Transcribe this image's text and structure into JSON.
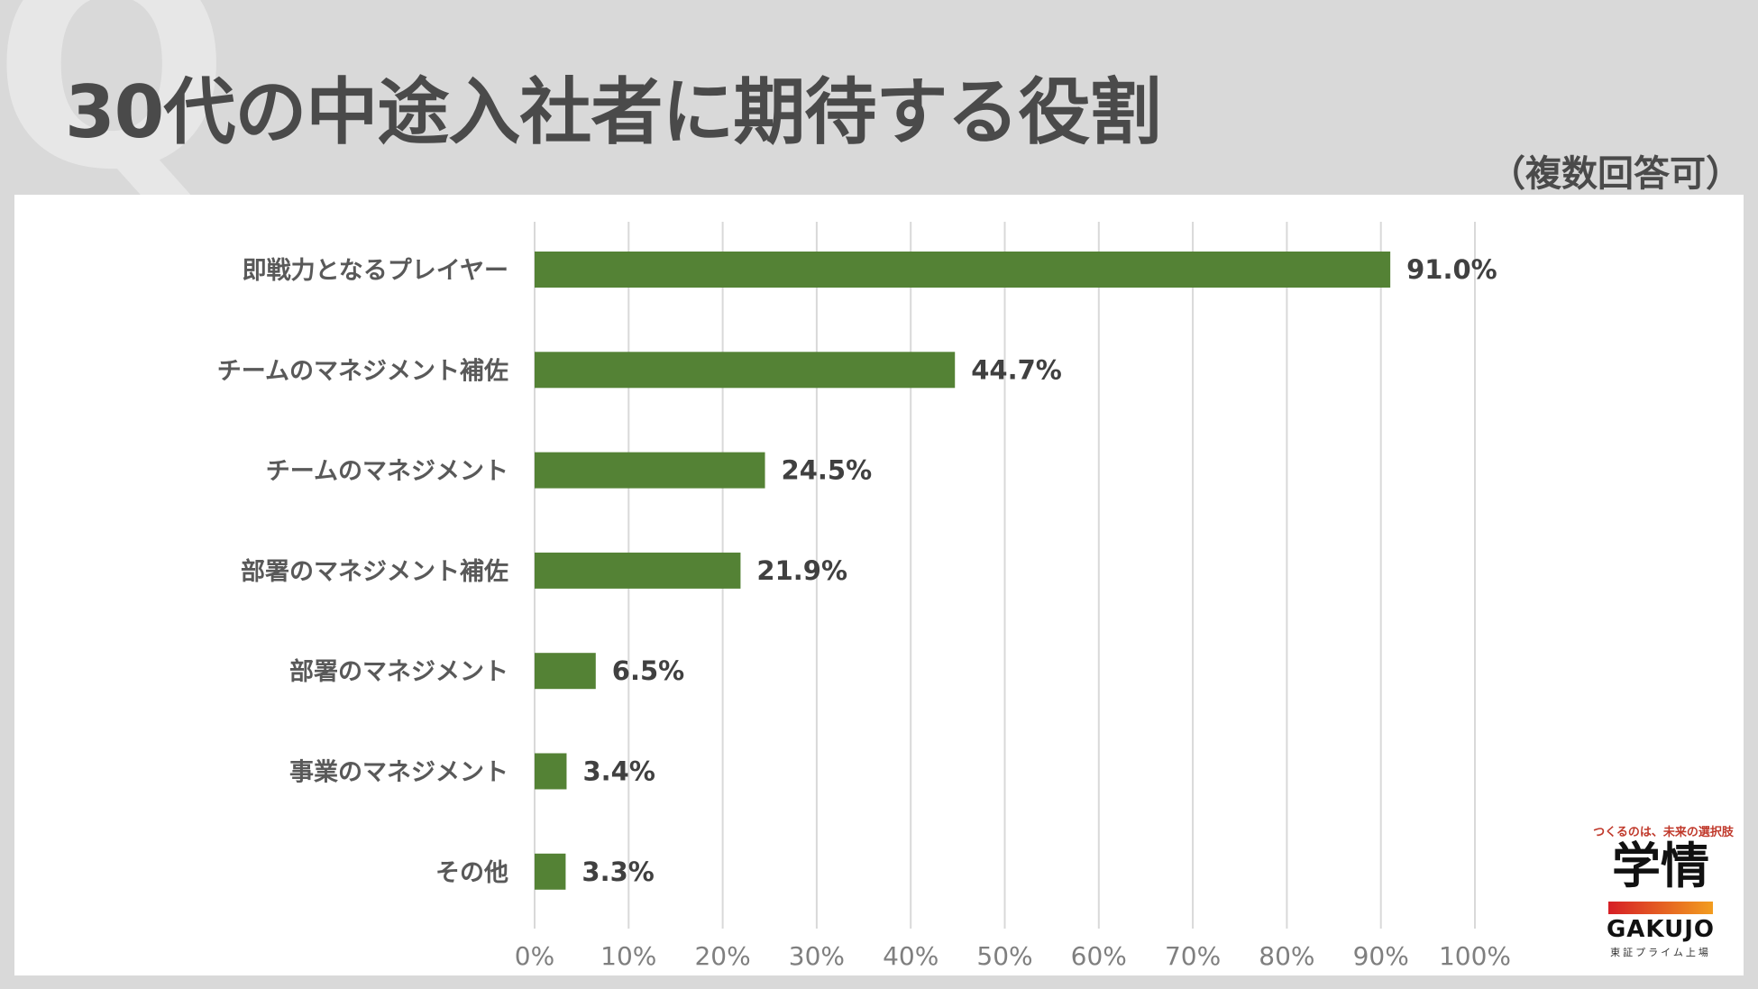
{
  "header": {
    "title": "30代の中途入社者に期待する役割",
    "subtitle": "（複数回答可）",
    "watermark": "Q"
  },
  "brand": {
    "tagline": "つくるのは、未来の選択肢",
    "mark": "学情",
    "wordmark": "GAKUJO",
    "listing": "東証プライム上場",
    "bar_colors": [
      "#d61f26",
      "#f29d1f"
    ]
  },
  "colors": {
    "bar": "#548235",
    "grid": "#d9d9d9",
    "label": "#595959",
    "tick": "#7f7f7f"
  },
  "chart_data": {
    "type": "bar",
    "orientation": "horizontal",
    "categories": [
      "即戦力となるプレイヤー",
      "チームのマネジメント補佐",
      "チームのマネジメント",
      "部署のマネジメント補佐",
      "部署のマネジメント",
      "事業のマネジメント",
      "その他"
    ],
    "values": [
      91.0,
      44.7,
      24.5,
      21.9,
      6.5,
      3.4,
      3.3
    ],
    "value_labels": [
      "91.0%",
      "44.7%",
      "24.5%",
      "21.9%",
      "6.5%",
      "3.4%",
      "3.3%"
    ],
    "xlim": [
      0,
      100
    ],
    "xticks": [
      0,
      10,
      20,
      30,
      40,
      50,
      60,
      70,
      80,
      90,
      100
    ],
    "xtick_labels": [
      "0%",
      "10%",
      "20%",
      "30%",
      "40%",
      "50%",
      "60%",
      "70%",
      "80%",
      "90%",
      "100%"
    ],
    "grid": true,
    "legend": "none"
  }
}
